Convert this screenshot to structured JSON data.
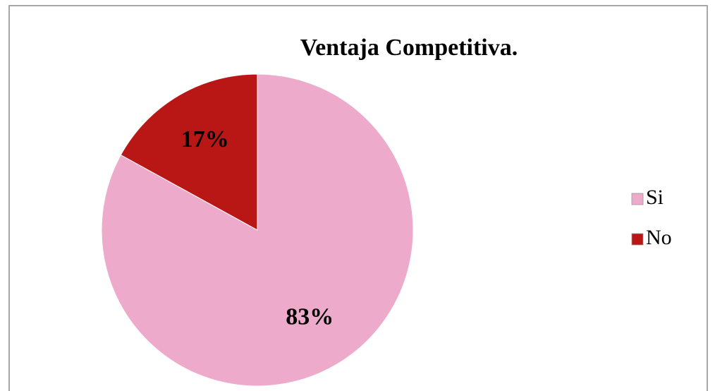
{
  "chart_data": {
    "type": "pie",
    "title": "Ventaja Competitiva.",
    "categories": [
      "Si",
      "No"
    ],
    "values": [
      83,
      17
    ],
    "value_labels": [
      "83%",
      "17%"
    ],
    "colors": [
      "#eeaacb",
      "#b91616"
    ],
    "legend": "right"
  }
}
